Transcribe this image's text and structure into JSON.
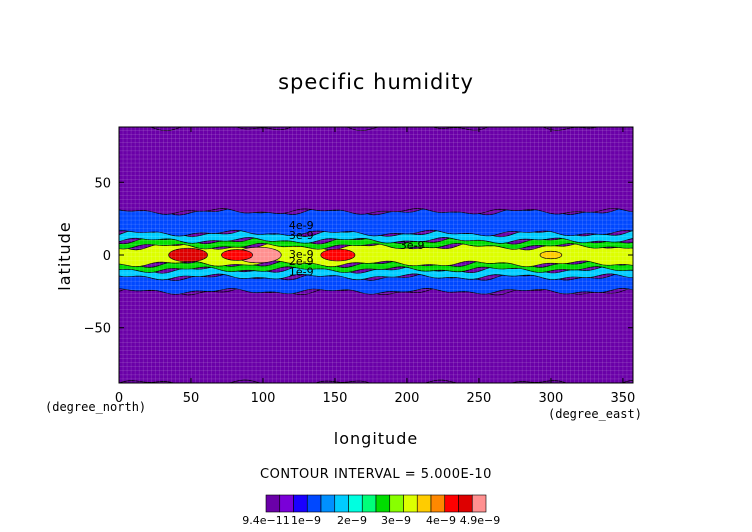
{
  "chart_data": {
    "type": "heatmap",
    "title": "specific humidity",
    "xlabel": "longitude",
    "ylabel": "latitude",
    "x_unit": "(degree_east)",
    "y_unit": "(degree_north)",
    "xlim": [
      0,
      357
    ],
    "ylim": [
      -88,
      88
    ],
    "xticks": [
      0,
      50,
      100,
      150,
      200,
      250,
      300,
      350
    ],
    "yticks": [
      -50,
      0,
      50
    ],
    "xtick_labels": [
      "0",
      "50",
      "100",
      "150",
      "200",
      "250",
      "300",
      "350"
    ],
    "ytick_labels": [
      "−50",
      "0",
      "50"
    ],
    "contour_interval_text": "CONTOUR INTERVAL = 5.000E-10",
    "contour_labels": [
      "4e-9",
      "3e-9",
      "2e-9",
      "1e-9",
      "3e-9",
      "3e-9"
    ],
    "colorbar": {
      "levels": [
        9.4e-11,
        1e-09,
        2e-09,
        3e-09,
        4e-09,
        4.9e-09
      ],
      "tick_labels": [
        "9.4e−11",
        "1e−9",
        "2e−9",
        "3e−9",
        "4e−9",
        "4.9e−9"
      ],
      "colors": [
        "#6a00a8",
        "#7a00d8",
        "#1a00ff",
        "#0048ff",
        "#0090ff",
        "#00ccff",
        "#00ffe0",
        "#00ff7a",
        "#00dd00",
        "#88ff00",
        "#ddff00",
        "#ffcc00",
        "#ff8800",
        "#ff0000",
        "#dd0000",
        "#ff9090"
      ]
    },
    "field_bands": [
      {
        "lat_min": -88,
        "lat_max": -25,
        "value": 9.4e-11
      },
      {
        "lat_min": -25,
        "lat_max": -15,
        "value": 1e-09
      },
      {
        "lat_min": -15,
        "lat_max": -10,
        "value": 1.8e-09
      },
      {
        "lat_min": -10,
        "lat_max": -6,
        "value": 2.5e-09
      },
      {
        "lat_min": -6,
        "lat_max": 6,
        "value": 3.2e-09
      },
      {
        "lat_min": 6,
        "lat_max": 10,
        "value": 2.5e-09
      },
      {
        "lat_min": 10,
        "lat_max": 15,
        "value": 1.8e-09
      },
      {
        "lat_min": 15,
        "lat_max": 30,
        "value": 1e-09
      },
      {
        "lat_min": 30,
        "lat_max": 88,
        "value": 9.4e-11
      }
    ],
    "maxima": [
      {
        "lon": 48,
        "lat": 0,
        "value": 4.5e-09
      },
      {
        "lon": 97,
        "lat": 0,
        "value": 4.9e-09
      },
      {
        "lon": 152,
        "lat": 0,
        "value": 4.2e-09
      },
      {
        "lon": 82,
        "lat": 0,
        "value": 4e-09
      },
      {
        "lon": 300,
        "lat": 0,
        "value": 3.4e-09
      }
    ]
  }
}
